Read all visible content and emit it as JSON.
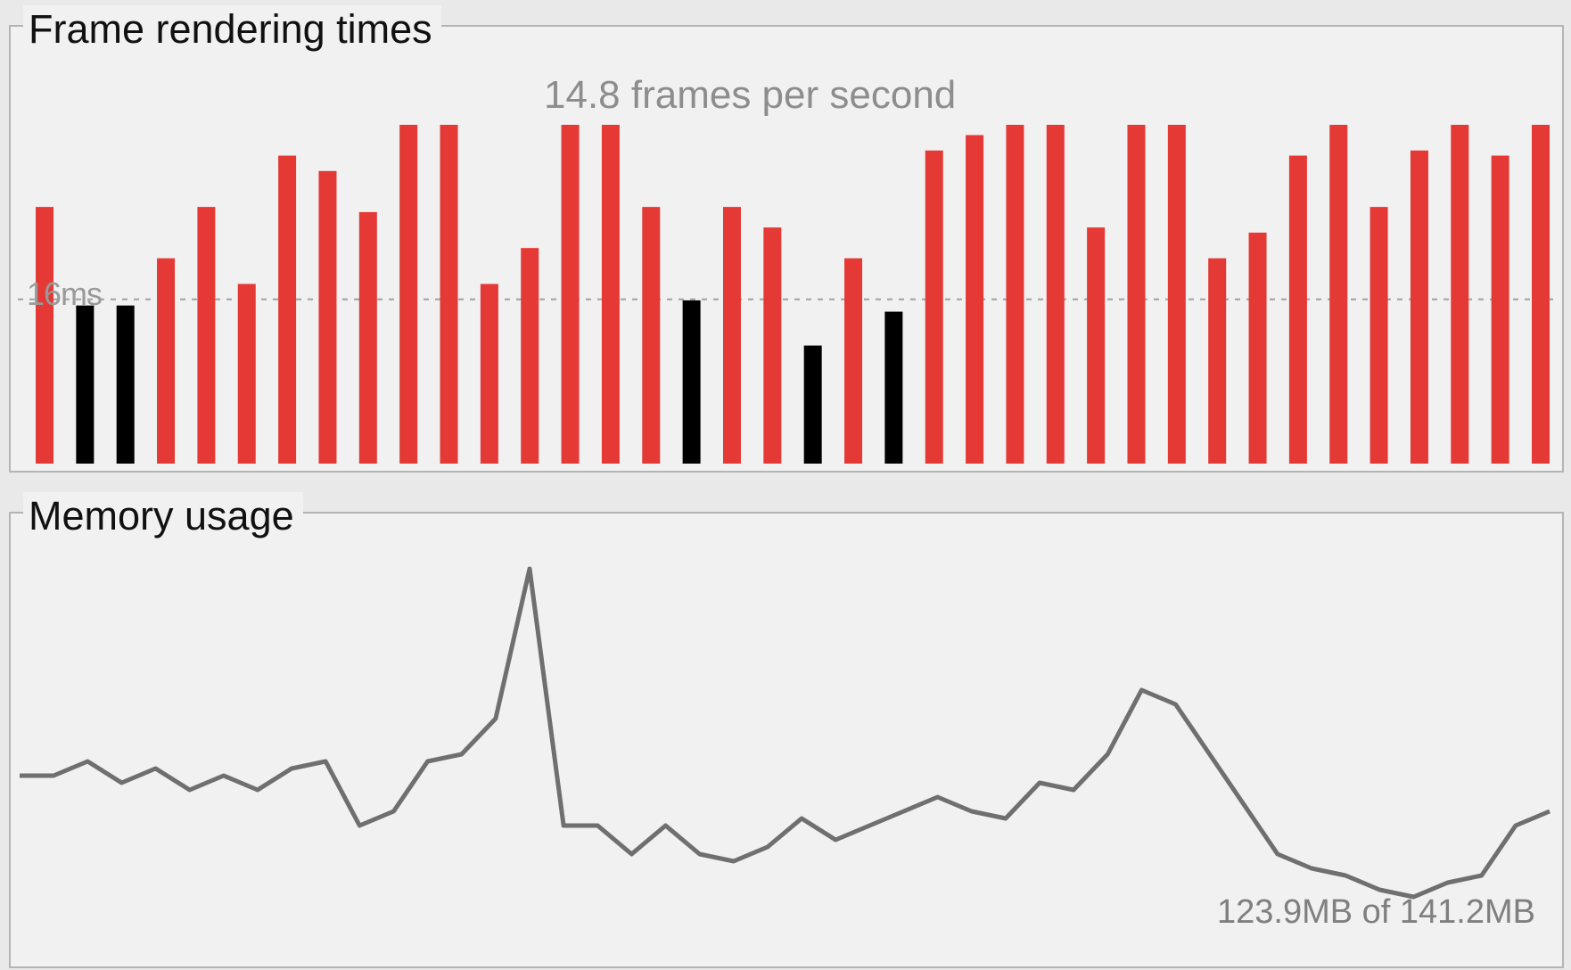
{
  "frame_panel": {
    "title": "Frame rendering times",
    "fps_text": "14.8 frames per second",
    "threshold_label": "16ms"
  },
  "memory_panel": {
    "title": "Memory usage",
    "usage_text": "123.9MB of 141.2MB"
  },
  "colors": {
    "over_budget_bar": "#e53935",
    "under_budget_bar": "#000000",
    "memory_line": "#6f6f6f",
    "threshold_line": "#a0a0a0"
  },
  "chart_data": [
    {
      "type": "bar",
      "title": "Frame rendering times",
      "ylabel": "",
      "threshold": 16,
      "ylim": [
        0,
        33
      ],
      "values": [
        25,
        15.4,
        15.4,
        20,
        25,
        17.5,
        30,
        28.5,
        24.5,
        33,
        33,
        17.5,
        21,
        33,
        33,
        25,
        15.9,
        25,
        23,
        11.5,
        20,
        14.8,
        30.5,
        32,
        33,
        33,
        23,
        33,
        33,
        20,
        22.5,
        30,
        33,
        25,
        30.5,
        33,
        30,
        33
      ],
      "colors": [
        "red",
        "black",
        "black",
        "red",
        "red",
        "red",
        "red",
        "red",
        "red",
        "red",
        "red",
        "red",
        "red",
        "red",
        "red",
        "red",
        "black",
        "red",
        "red",
        "black",
        "red",
        "black",
        "red",
        "red",
        "red",
        "red",
        "red",
        "red",
        "red",
        "red",
        "red",
        "red",
        "red",
        "red",
        "red",
        "red",
        "red",
        "red"
      ],
      "subtitle": "14.8 frames per second"
    },
    {
      "type": "line",
      "title": "Memory usage",
      "ylabel": "",
      "y": [
        63,
        63,
        65,
        62,
        64,
        61,
        63,
        61,
        64,
        65,
        56,
        58,
        65,
        66,
        71,
        92,
        56,
        56,
        52,
        56,
        52,
        51,
        53,
        57,
        54,
        56,
        58,
        60,
        58,
        57,
        62,
        61,
        66,
        75,
        73,
        66,
        59,
        52,
        50,
        49,
        47,
        46,
        48,
        49,
        56,
        58
      ],
      "ylim": [
        40,
        100
      ],
      "annotation": "123.9MB of 141.2MB"
    }
  ]
}
